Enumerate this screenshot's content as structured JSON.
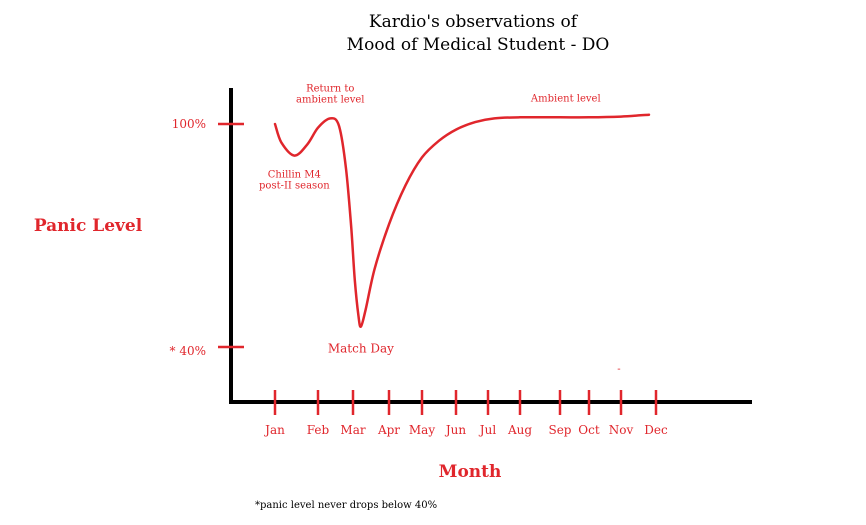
{
  "chart_data": {
    "type": "line",
    "title_line1": "Kardio's observations of",
    "title_line2": "Mood of Medical Student - DO",
    "ylabel": "Panic Level",
    "xlabel": "Month",
    "footnote": "*panic level never drops below 40%",
    "x_ticks": [
      "Jan",
      "Feb",
      "Mar",
      "Apr",
      "May",
      "Jun",
      "Jul",
      "Aug",
      "Sep",
      "Oct",
      "Nov",
      "Dec"
    ],
    "y_ticks": [
      {
        "label": "100%",
        "value": 100
      },
      {
        "label": "* 40%",
        "value": 40
      }
    ],
    "stray_mark": "-",
    "color": "#e0262c",
    "series": [
      {
        "points": [
          {
            "x": 1.0,
            "y": 100
          },
          {
            "x": 1.15,
            "y": 95
          },
          {
            "x": 1.45,
            "y": 91.5
          },
          {
            "x": 1.75,
            "y": 94.5
          },
          {
            "x": 2.0,
            "y": 99
          },
          {
            "x": 2.35,
            "y": 101.5
          },
          {
            "x": 2.6,
            "y": 99.5
          },
          {
            "x": 2.8,
            "y": 88
          },
          {
            "x": 2.95,
            "y": 72
          },
          {
            "x": 3.05,
            "y": 58
          },
          {
            "x": 3.15,
            "y": 48.5
          },
          {
            "x": 3.22,
            "y": 45.5
          },
          {
            "x": 3.35,
            "y": 50
          },
          {
            "x": 3.6,
            "y": 61
          },
          {
            "x": 4.0,
            "y": 73
          },
          {
            "x": 4.5,
            "y": 83.5
          },
          {
            "x": 5.0,
            "y": 91
          },
          {
            "x": 5.5,
            "y": 95.5
          },
          {
            "x": 6.0,
            "y": 98.5
          },
          {
            "x": 6.6,
            "y": 100.5
          },
          {
            "x": 7.2,
            "y": 101.5
          },
          {
            "x": 8.0,
            "y": 101.8
          },
          {
            "x": 9.0,
            "y": 101.8
          },
          {
            "x": 10.0,
            "y": 101.8
          },
          {
            "x": 11.0,
            "y": 102
          },
          {
            "x": 11.8,
            "y": 102.5
          }
        ]
      }
    ],
    "annotations": [
      {
        "lines": [
          "Return to",
          "ambient level"
        ],
        "x": 2.35,
        "y": 101.5,
        "pos": "above"
      },
      {
        "lines": [
          "Chillin M4",
          "post-II season"
        ],
        "x": 1.45,
        "y": 91.5,
        "pos": "below"
      },
      {
        "lines": [
          "Match Day"
        ],
        "x": 3.22,
        "y": 45.5,
        "pos": "below"
      },
      {
        "lines": [
          "Ambient level"
        ],
        "x": 9.2,
        "y": 101.8,
        "pos": "above"
      }
    ]
  }
}
